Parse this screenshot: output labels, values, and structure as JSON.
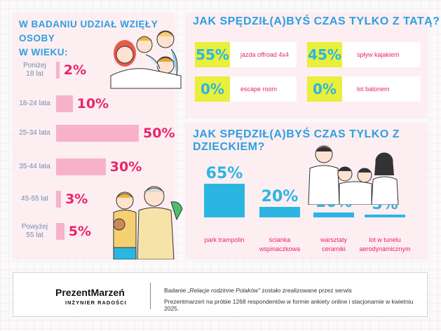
{
  "age_section": {
    "title_line1": "W BADANIU UDZIAŁ WZIĘŁY OSOBY",
    "title_line2": "W WIEKU:"
  },
  "dad_section": {
    "title": "JAK SPĘDZIŁ(A)BYŚ CZAS TYLKO Z TATĄ?",
    "activities": [
      {
        "pct": "55%",
        "label": "jazda offroad 4x4"
      },
      {
        "pct": "45%",
        "label": "spływ kajakiem"
      },
      {
        "pct": "0%",
        "label": "escape room"
      },
      {
        "pct": "0%",
        "label": "lot balonem"
      }
    ]
  },
  "kid_section": {
    "title": "JAK SPĘDZIŁ(A)BYŚ CZAS TYLKO Z DZIECKIEM?"
  },
  "chart_data": [
    {
      "type": "bar",
      "orientation": "horizontal",
      "title": "W BADANIU UDZIAŁ WZIĘŁY OSOBY W WIEKU:",
      "categories": [
        "Poniżej 18 lat",
        "18-24 lata",
        "25-34 lata",
        "35-44 lata",
        "45-55 lat",
        "Powyżej 55 lat"
      ],
      "category_lines": [
        [
          "Poniżej",
          "18 lat"
        ],
        [
          "18-24 lata"
        ],
        [
          "25-34 lata"
        ],
        [
          "35-44 lata"
        ],
        [
          "45-55 lat"
        ],
        [
          "Powyżej",
          "55 lat"
        ]
      ],
      "values": [
        2,
        10,
        50,
        30,
        3,
        5
      ],
      "value_labels": [
        "2%",
        "10%",
        "50%",
        "30%",
        "3%",
        "5%"
      ],
      "color": "#f7b2c9",
      "label_color": "#e8246e"
    },
    {
      "type": "bar",
      "orientation": "vertical",
      "title": "JAK SPĘDZIŁ(A)BYŚ CZAS TYLKO Z DZIECKIEM?",
      "categories": [
        "park trampolin",
        "ścianka wspinaczkowa",
        "warsztaty ceramiki",
        "lot w tunelu aerodynamicznym"
      ],
      "category_lines": [
        [
          "park trampolin"
        ],
        [
          "ścianka",
          "wspinaczkowa"
        ],
        [
          "warsztaty",
          "ceramiki"
        ],
        [
          "lot w tunelu",
          "aerodynamicznym"
        ]
      ],
      "values": [
        65,
        20,
        10,
        5
      ],
      "value_labels": [
        "65%",
        "20%",
        "10%",
        "5%"
      ],
      "color": "#2bb6e2"
    }
  ],
  "footer": {
    "logo": "PrezentMarzeń",
    "logo_sub": "INŻYNIER RADOŚCI",
    "line1_pre": "Badanie ",
    "line1_em": "„Relacje rodzinne Polaków”",
    "line1_post": " zostało zrealizowane przez serwis",
    "line2": "Prezentmarzeń na próbie 1268 respondentów w formie ankiety online i stacjonarnie w kwietniu 2025."
  },
  "colors": {
    "title_blue": "#2e9fe0",
    "accent_pink": "#e8246e",
    "panel_pink": "#fdeef2",
    "highlight_yellow": "#e9ef3a"
  }
}
